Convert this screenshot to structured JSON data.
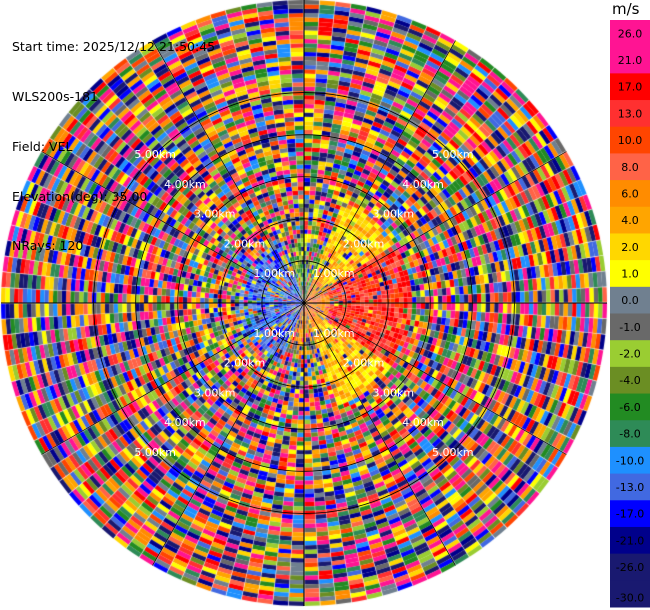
{
  "info": {
    "start_time": "Start time: 2025/12/12 21:50:45",
    "instrument": "WLS200s-181",
    "field": "Field: VEL",
    "elevation": "Elevation(deg): 35.00",
    "nrays": "NRays: 120"
  },
  "chart_data": {
    "type": "heatmap",
    "projection": "polar-ppi",
    "n_rays": 120,
    "range_rings_km": [
      1.0,
      2.0,
      3.0,
      4.0,
      5.0
    ],
    "range_ring_labels": [
      "1.00km",
      "2.00km",
      "3.00km",
      "4.00km",
      "5.00km"
    ],
    "max_range_km": 7.2,
    "colorbar": {
      "unit": "m/s",
      "tick_labels": [
        "26.0",
        "21.0",
        "17.0",
        "13.0",
        "10.0",
        "8.0",
        "6.0",
        "4.0",
        "2.0",
        "1.0",
        "0.0",
        "-1.0",
        "-2.0",
        "-4.0",
        "-6.0",
        "-8.0",
        "-10.0",
        "-13.0",
        "-17.0",
        "-21.0",
        "-26.0",
        "-30.0"
      ],
      "colors": [
        "#ff1493",
        "#ff1493",
        "#ff0000",
        "#ff3030",
        "#ff4500",
        "#ff6347",
        "#ff8c00",
        "#ffa500",
        "#ffd700",
        "#ffff00",
        "#708090",
        "#696969",
        "#9acd32",
        "#6b8e23",
        "#228b22",
        "#2e8b57",
        "#1e90ff",
        "#4169e1",
        "#0000ff",
        "#00008b",
        "#191970",
        "#191970"
      ]
    },
    "grid": true
  }
}
